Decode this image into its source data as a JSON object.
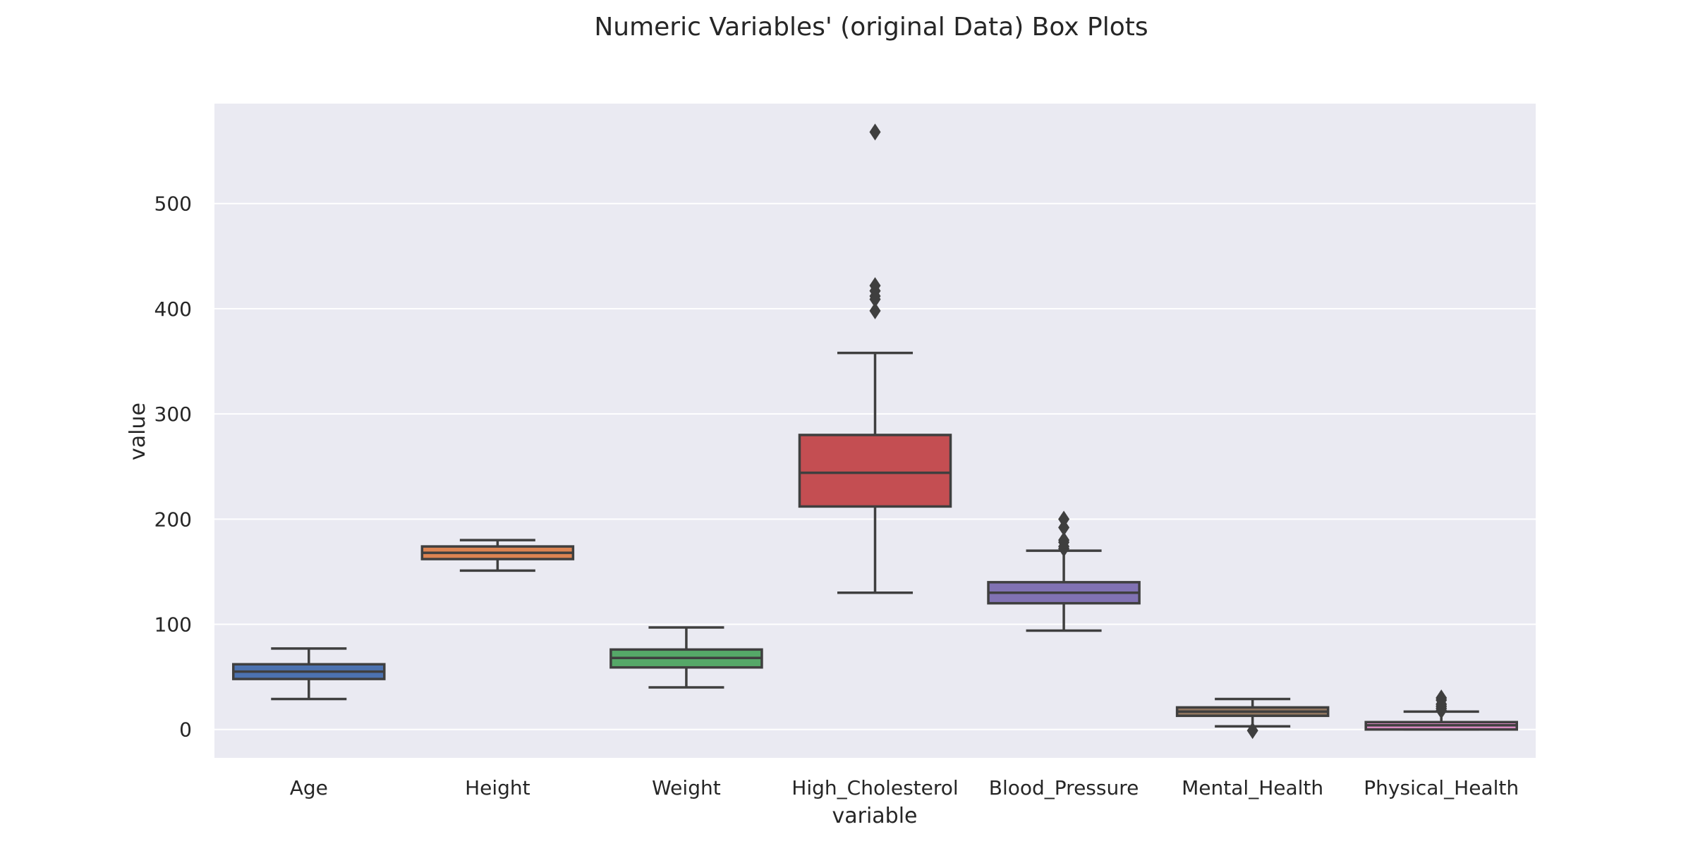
{
  "chart_data": {
    "type": "box",
    "title": "Numeric Variables' (original Data) Box Plots",
    "xlabel": "variable",
    "ylabel": "value",
    "ylim": [
      -27,
      595
    ],
    "yticks": [
      0,
      100,
      200,
      300,
      400,
      500
    ],
    "grid": true,
    "background": "#eaeaf2",
    "series": [
      {
        "name": "Age",
        "color": "#4c72b0",
        "whisker_low": 29,
        "q1": 48,
        "median": 55,
        "q3": 62,
        "whisker_high": 77,
        "outliers": []
      },
      {
        "name": "Height",
        "color": "#dd8452",
        "whisker_low": 151,
        "q1": 162,
        "median": 168,
        "q3": 174,
        "whisker_high": 180,
        "outliers": []
      },
      {
        "name": "Weight",
        "color": "#55a868",
        "whisker_low": 40,
        "q1": 59,
        "median": 68,
        "q3": 76,
        "whisker_high": 97,
        "outliers": []
      },
      {
        "name": "High_Cholesterol",
        "color": "#c44e52",
        "whisker_low": 130,
        "q1": 212,
        "median": 244,
        "q3": 280,
        "whisker_high": 358,
        "outliers": [
          398,
          409,
          412,
          417,
          422,
          568
        ]
      },
      {
        "name": "Blood_Pressure",
        "color": "#8172b3",
        "whisker_low": 94,
        "q1": 120,
        "median": 130,
        "q3": 140,
        "whisker_high": 170,
        "outliers": [
          172,
          174,
          178,
          180,
          192,
          200
        ]
      },
      {
        "name": "Mental_Health",
        "color": "#937860",
        "whisker_low": 3,
        "q1": 13,
        "median": 17,
        "q3": 21,
        "whisker_high": 29,
        "outliers": [
          -1
        ]
      },
      {
        "name": "Physical_Health",
        "color": "#da8bc3",
        "whisker_low": 0,
        "q1": 0,
        "median": 4,
        "q3": 7,
        "whisker_high": 17,
        "outliers": [
          18,
          20,
          22,
          24,
          28,
          30
        ]
      }
    ]
  }
}
